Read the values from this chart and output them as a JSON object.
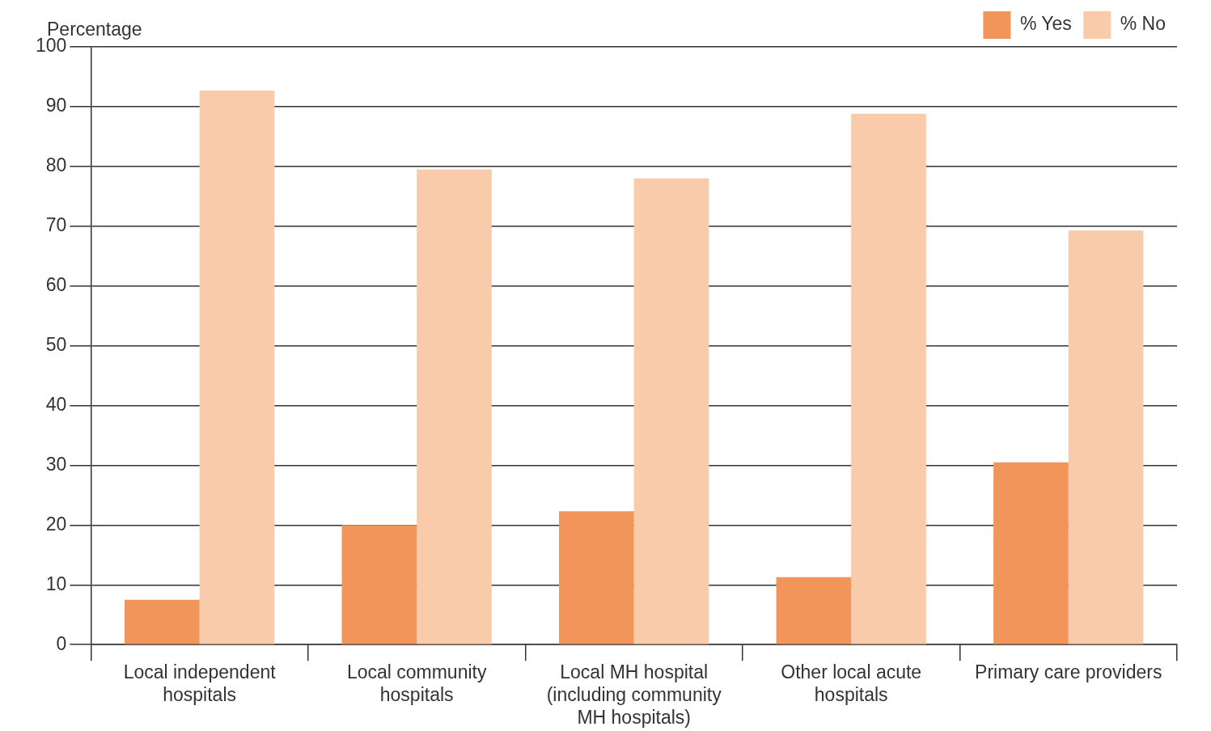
{
  "chart_data": {
    "type": "bar",
    "ylabel": "Percentage",
    "categories": [
      "Local independent hospitals",
      "Local community hospitals",
      "Local MH hospital (including community MH hospitals)",
      "Other local acute hospitals",
      "Primary care providers"
    ],
    "series": [
      {
        "name": "% Yes",
        "color": "#f2955b",
        "values": [
          7.5,
          20,
          22.3,
          11.3,
          30.5
        ]
      },
      {
        "name": "% No",
        "color": "#f9cbaa",
        "values": [
          92.7,
          79.5,
          78,
          88.8,
          69.3
        ]
      }
    ],
    "ylim": [
      0,
      100
    ],
    "yticks": [
      0,
      10,
      20,
      30,
      40,
      50,
      60,
      70,
      80,
      90,
      100
    ],
    "grid": "y",
    "legend": "top right"
  }
}
